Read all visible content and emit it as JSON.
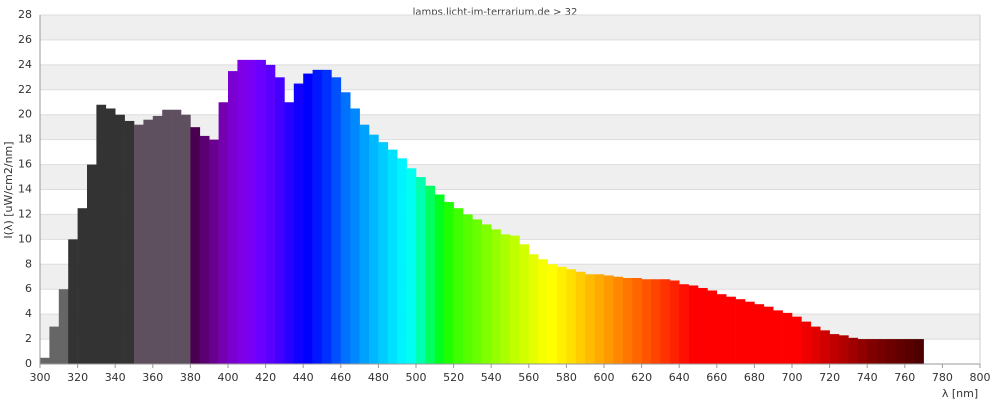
{
  "chart_data": {
    "type": "histogram",
    "title": "lamps.licht-im-terrarium.de > 32",
    "x_label": "λ [nm]",
    "y_label": "I(λ)  [uW/cm2/nm]",
    "bins": [
      300,
      305,
      310,
      315,
      320,
      325,
      330,
      335,
      340,
      345,
      350,
      355,
      360,
      365,
      370,
      375,
      380,
      385,
      390,
      395,
      400,
      405,
      410,
      415,
      420,
      425,
      430,
      435,
      440,
      445,
      450,
      455,
      460,
      465,
      470,
      475,
      480,
      485,
      490,
      495,
      500,
      505,
      510,
      515,
      520,
      525,
      530,
      535,
      540,
      545,
      550,
      555,
      560,
      565,
      570,
      575,
      580,
      585,
      590,
      595,
      600,
      605,
      610,
      615,
      620,
      625,
      630,
      635,
      640,
      645,
      650,
      655,
      660,
      665,
      670,
      675,
      680,
      685,
      690,
      695,
      700,
      705,
      710,
      715,
      720,
      725,
      730,
      735,
      740,
      745,
      750,
      755,
      760,
      765,
      770
    ],
    "values": [
      0.5,
      3,
      6,
      10,
      12.5,
      16,
      20.8,
      20.5,
      20,
      19.5,
      19.2,
      19.6,
      19.9,
      20.4,
      20.4,
      20,
      19,
      18.3,
      18,
      21,
      23.5,
      24.4,
      24.4,
      24.4,
      24,
      23,
      21,
      22.5,
      23.3,
      23.6,
      23.6,
      23,
      21.8,
      20.5,
      19.2,
      18.4,
      17.8,
      17.2,
      16.5,
      15.7,
      15,
      14.3,
      13.6,
      13,
      12.5,
      12,
      11.6,
      11.2,
      10.8,
      10.4,
      10.3,
      9.6,
      8.8,
      8.4,
      8,
      7.8,
      7.6,
      7.4,
      7.2,
      7.2,
      7.1,
      7,
      6.9,
      6.9,
      6.8,
      6.8,
      6.8,
      6.7,
      6.4,
      6.3,
      6.1,
      5.9,
      5.6,
      5.4,
      5.2,
      5,
      4.8,
      4.6,
      4.3,
      4.1,
      3.8,
      3.4,
      3,
      2.7,
      2.4,
      2.3,
      2.1,
      2,
      2,
      2,
      2,
      2,
      2,
      2
    ],
    "colors": [
      "#666666",
      "#666666",
      "#666666",
      "#333333",
      "#333333",
      "#333333",
      "#333333",
      "#333333",
      "#333333",
      "#333333",
      "#5f5060",
      "#5f5060",
      "#5f5060",
      "#5f5060",
      "#5f5060",
      "#5f5060",
      "#4a0050",
      "#5a0070",
      "#6a0090",
      "#7500b0",
      "#7a00d0",
      "#7f00e6",
      "#7800f5",
      "#6a00ff",
      "#5a00ff",
      "#4400ff",
      "#2800ff",
      "#1000ff",
      "#0000ff",
      "#0018ff",
      "#0030ff",
      "#0050ff",
      "#0070ff",
      "#0088ff",
      "#00a0ff",
      "#00b8ff",
      "#00ccff",
      "#00e0ff",
      "#00f4ff",
      "#00fff0",
      "#00ffb0",
      "#00ff60",
      "#00ff20",
      "#20ff00",
      "#40ff00",
      "#55ff00",
      "#6aff00",
      "#80ff00",
      "#95ff00",
      "#aaff00",
      "#bfff00",
      "#d2ff00",
      "#e6ff00",
      "#f5ff00",
      "#ffff00",
      "#ffef00",
      "#ffdf00",
      "#ffcc00",
      "#ffbb00",
      "#ffaa00",
      "#ff9900",
      "#ff8800",
      "#ff7700",
      "#ff6600",
      "#ff5500",
      "#ff4400",
      "#ff3300",
      "#ff2200",
      "#ff1000",
      "#ff0000",
      "#ff0000",
      "#ff0000",
      "#ff0000",
      "#ff0000",
      "#ff0000",
      "#ff0000",
      "#ff0000",
      "#ff0000",
      "#ff0000",
      "#ff0000",
      "#ff0000",
      "#f00000",
      "#e00000",
      "#d00000",
      "#c00000",
      "#b00000",
      "#a00000",
      "#900000",
      "#800000",
      "#760000",
      "#6c0000",
      "#620000",
      "#580000",
      "#4e0000"
    ],
    "xlim": [
      300,
      800
    ],
    "xticks": [
      300,
      320,
      340,
      360,
      380,
      400,
      420,
      440,
      460,
      480,
      500,
      520,
      540,
      560,
      580,
      600,
      620,
      640,
      660,
      680,
      700,
      720,
      740,
      760,
      780,
      800
    ],
    "ylim": [
      0,
      28
    ],
    "yticks": [
      0,
      2,
      4,
      6,
      8,
      10,
      12,
      14,
      16,
      18,
      20,
      22,
      24,
      26,
      28
    ],
    "grid": true
  }
}
